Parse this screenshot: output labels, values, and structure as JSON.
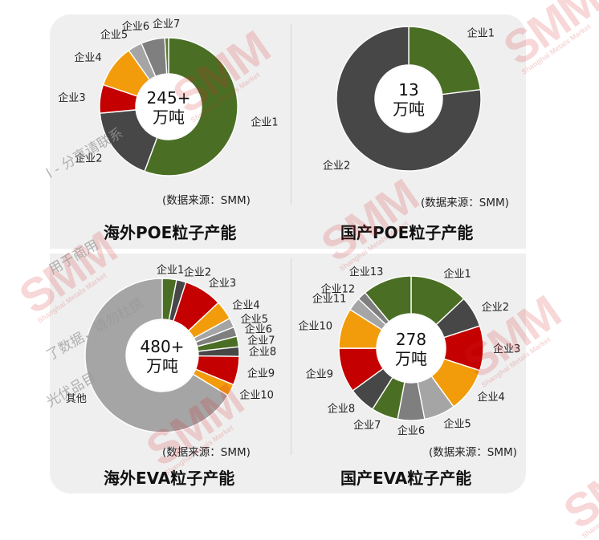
{
  "chart_data": [
    {
      "type": "pie",
      "title": "海外POE粒子产能",
      "center_label": [
        "245+",
        "万吨"
      ],
      "source": "(数据来源：SMM)",
      "categories": [
        "企业1",
        "企业2",
        "企业3",
        "企业4",
        "企业5",
        "企业6",
        "企业7"
      ],
      "values": [
        50,
        16,
        6,
        9,
        3,
        5,
        0.8
      ],
      "colors": [
        "#4a6f24",
        "#474747",
        "#c40000",
        "#f29c0c",
        "#a5a5a5",
        "#7f7f7f",
        "#5a7a2e"
      ]
    },
    {
      "type": "pie",
      "title": "国产POE粒子产能",
      "center_label": [
        "13",
        "万吨"
      ],
      "source": "(数据来源：SMM)",
      "categories": [
        "企业1",
        "企业2"
      ],
      "values": [
        23,
        77
      ],
      "colors": [
        "#4a6f24",
        "#474747"
      ]
    },
    {
      "type": "pie",
      "title": "海外EVA粒子产能",
      "center_label": [
        "480+",
        "万吨"
      ],
      "source": "(数据来源：SMM)",
      "categories": [
        "企业1",
        "企业2",
        "企业3",
        "企业4",
        "企业5",
        "企业6",
        "企业7",
        "企业8",
        "企业9",
        "企业10",
        "其他"
      ],
      "values": [
        3,
        2,
        8,
        4,
        2,
        2,
        2.2,
        2,
        6,
        2.5,
        66.3
      ],
      "colors": [
        "#4a6f24",
        "#474747",
        "#c40000",
        "#f29c0c",
        "#a5a5a5",
        "#7f7f7f",
        "#4a6f24",
        "#474747",
        "#c40000",
        "#f29c0c",
        "#a5a5a5"
      ]
    },
    {
      "type": "pie",
      "title": "国产EVA粒子产能",
      "center_label": [
        "278",
        "万吨"
      ],
      "source": "(数据来源：SMM)",
      "categories": [
        "企业1",
        "企业2",
        "企业3",
        "企业4",
        "企业5",
        "企业6",
        "企业7",
        "企业8",
        "企业9",
        "企业10",
        "企业11",
        "企业12",
        "企业13"
      ],
      "values": [
        13,
        7,
        10,
        10,
        7,
        6,
        6,
        6,
        10,
        9,
        3,
        2,
        11
      ],
      "colors": [
        "#4a6f24",
        "#474747",
        "#c40000",
        "#f29c0c",
        "#a5a5a5",
        "#7f7f7f",
        "#4a6f24",
        "#474747",
        "#c40000",
        "#f29c0c",
        "#a5a5a5",
        "#7f7f7f",
        "#4a6f24"
      ]
    }
  ],
  "watermark": {
    "logo": "SMM",
    "logo_sub": "Shanghai Metals Market",
    "texts": [
      "l - 分享请联系",
      "用于商用",
      "了数据，请勿杜撰",
      "光伏品目"
    ]
  }
}
